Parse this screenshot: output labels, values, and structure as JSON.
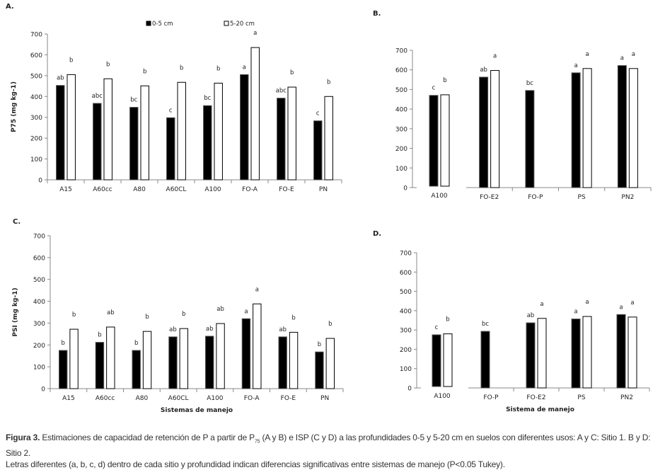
{
  "legend": {
    "series": [
      "0-5 cm",
      "5-20 cm"
    ],
    "colors": [
      "#000000",
      "#ffffff"
    ]
  },
  "chart_data": [
    {
      "panel": "A.",
      "type": "bar",
      "title": "",
      "ylabel": "P75 (mg kg-1)",
      "xlabel": "",
      "ylim": [
        0,
        700
      ],
      "yticks": [
        0,
        100,
        200,
        300,
        400,
        500,
        600,
        700
      ],
      "categories": [
        "A15",
        "A60cc",
        "A80",
        "A60CL",
        "A100",
        "FO-A",
        "FO-E",
        "PN"
      ],
      "series": [
        {
          "name": "0-5 cm",
          "values": [
            453,
            367,
            348,
            298,
            356,
            505,
            392,
            283
          ],
          "labels": [
            "ab",
            "abc",
            "bc",
            "c",
            "bc",
            "a",
            "abc",
            "c"
          ]
        },
        {
          "name": "5-20 cm",
          "values": [
            505,
            485,
            451,
            468,
            464,
            635,
            445,
            400
          ],
          "labels": [
            "b",
            "b",
            "b",
            "b",
            "b",
            "a",
            "b",
            "b"
          ]
        }
      ],
      "legend": "top-center"
    },
    {
      "panel": "B.",
      "type": "bar",
      "title": "",
      "ylabel": "",
      "xlabel": "",
      "ylim": [
        0,
        700
      ],
      "yticks": [
        0,
        100,
        200,
        300,
        400,
        500,
        600,
        700
      ],
      "categories": [
        "A100",
        "FO-E2",
        "FO-P",
        "PS",
        "PN2"
      ],
      "series": [
        {
          "name": "0-5 cm",
          "values": [
            470,
            563,
            495,
            585,
            622
          ],
          "labels": [
            "c",
            "ab",
            "bc",
            "a",
            "a"
          ]
        },
        {
          "name": "5-20 cm",
          "values": [
            473,
            597,
            null,
            607,
            607
          ],
          "labels": [
            "b",
            "a",
            "",
            "a",
            "a"
          ]
        }
      ]
    },
    {
      "panel": "C.",
      "type": "bar",
      "title": "",
      "ylabel": "PSI (mg kg-1)",
      "xlabel": "Sistemas de manejo",
      "ylim": [
        0,
        700
      ],
      "yticks": [
        0,
        100,
        200,
        300,
        400,
        500,
        600,
        700
      ],
      "categories": [
        "A15",
        "A60cc",
        "A80",
        "A60CL",
        "A100",
        "FO-A",
        "FO-E",
        "PN"
      ],
      "series": [
        {
          "name": "0-5 cm",
          "values": [
            175,
            212,
            175,
            237,
            240,
            320,
            237,
            168
          ],
          "labels": [
            "b",
            "b",
            "b",
            "ab",
            "ab",
            "a",
            "ab",
            "b"
          ]
        },
        {
          "name": "5-20 cm",
          "values": [
            272,
            282,
            262,
            275,
            298,
            388,
            258,
            230
          ],
          "labels": [
            "b",
            "ab",
            "b",
            "b",
            "ab",
            "a",
            "b",
            "b"
          ]
        }
      ]
    },
    {
      "panel": "D.",
      "type": "bar",
      "title": "",
      "ylabel": "",
      "xlabel": "Sistema de manejo",
      "ylim": [
        0,
        700
      ],
      "yticks": [
        0,
        100,
        200,
        300,
        400,
        500,
        600,
        700
      ],
      "categories": [
        "A100",
        "FO-P",
        "FO-E2",
        "PS",
        "PN2"
      ],
      "series": [
        {
          "name": "0-5 cm",
          "values": [
            275,
            293,
            337,
            357,
            380
          ],
          "labels": [
            "c",
            "bc",
            "ab",
            "a",
            "a"
          ]
        },
        {
          "name": "5-20 cm",
          "values": [
            280,
            null,
            360,
            370,
            367
          ],
          "labels": [
            "b",
            "",
            "a",
            "a",
            "a"
          ]
        }
      ]
    }
  ],
  "caption": {
    "figure_label": "Figura 3.",
    "line1_before_sub": "Estimaciones de capacidad de retención de P a partir de P",
    "line1_sub": "75",
    "line1_after_sub": " (A y B) e ISP (C y D) a las profundidades 0-5 y 5-20 cm en suelos con diferentes usos: A y C: Sitio 1. B y D: Sitio 2.",
    "line2": "Letras diferentes (a, b, c, d) dentro de cada sitio y profundidad indican diferencias significativas entre sistemas de manejo (P<0.05 Tukey)."
  }
}
